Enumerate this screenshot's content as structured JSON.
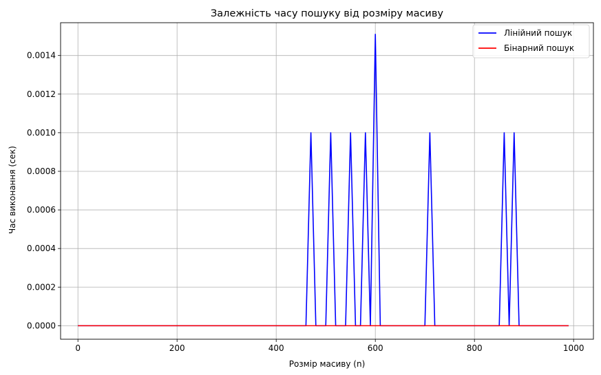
{
  "chart_data": {
    "type": "line",
    "title": "Залежність часу пошуку від розміру масиву",
    "xlabel": "Розмір масиву (n)",
    "ylabel": "Час виконання (сек)",
    "xlim": [
      -35,
      1040
    ],
    "ylim": [
      -7e-05,
      0.00157
    ],
    "x_ticks": [
      0,
      200,
      400,
      600,
      800,
      1000
    ],
    "x_tick_labels": [
      "0",
      "200",
      "400",
      "600",
      "800",
      "1000"
    ],
    "y_ticks": [
      0,
      0.0002,
      0.0004,
      0.0006,
      0.0008,
      0.001,
      0.0012,
      0.0014
    ],
    "y_tick_labels": [
      "0.0000",
      "0.0002",
      "0.0004",
      "0.0006",
      "0.0008",
      "0.0010",
      "0.0012",
      "0.0014"
    ],
    "grid": true,
    "legend_position": "top-right",
    "series": [
      {
        "name": "Лінійний пошук",
        "color": "#0000ff",
        "x": [
          0,
          460,
          470,
          480,
          500,
          510,
          520,
          540,
          550,
          560,
          570,
          580,
          590,
          600,
          610,
          700,
          710,
          720,
          850,
          860,
          870,
          880,
          890,
          990
        ],
        "y": [
          0,
          0,
          0.001,
          0,
          0,
          0.001,
          0,
          0,
          0.001,
          0,
          0,
          0.001,
          0,
          0.00151,
          0,
          0,
          0.001,
          0,
          0,
          0.001,
          0,
          0.001,
          0,
          0
        ]
      },
      {
        "name": "Бінарний пошук",
        "color": "#ff0000",
        "x": [
          0,
          990
        ],
        "y": [
          0,
          0
        ]
      }
    ]
  }
}
